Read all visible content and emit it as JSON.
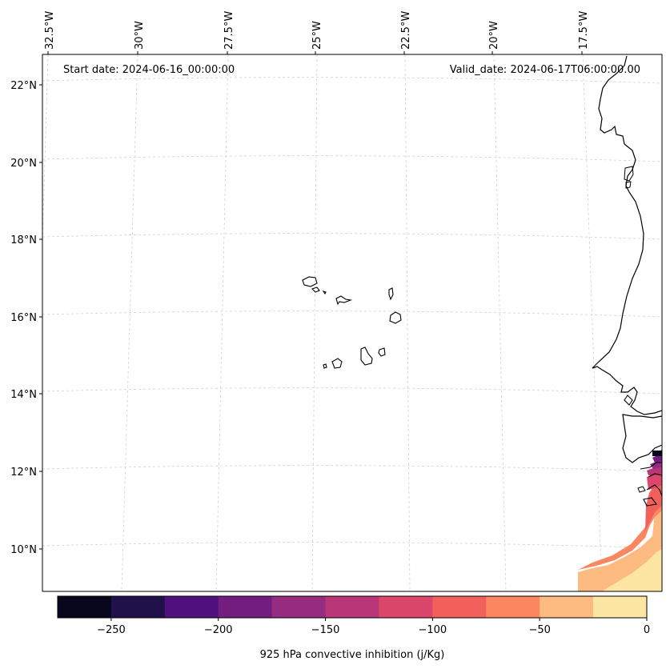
{
  "map": {
    "start_label": "Start date: 2024-06-16_00:00:00",
    "valid_label": "Valid_date: 2024-06-17T06:00:00.00",
    "lon_labels": [
      "32.5°W",
      "30°W",
      "27.5°W",
      "25°W",
      "22.5°W",
      "20°W",
      "17.5°W"
    ],
    "lat_labels": [
      "22°N",
      "20°N",
      "18°N",
      "16°N",
      "14°N",
      "12°N",
      "10°N"
    ],
    "gridlines": true
  },
  "colorbar": {
    "label": "925 hPa convective inhibition (j/Kg)",
    "ticks": [
      "−250",
      "−200",
      "−150",
      "−100",
      "−50",
      "0"
    ],
    "levels": [
      -275,
      -250,
      -225,
      -200,
      -175,
      -150,
      -125,
      -100,
      -75,
      -50,
      -25,
      0
    ],
    "colors": [
      "#07061c",
      "#20114b",
      "#4f117b",
      "#741d81",
      "#952c80",
      "#b93778",
      "#db476a",
      "#f2605c",
      "#fb8761",
      "#febb81",
      "#fde6a3"
    ]
  }
}
